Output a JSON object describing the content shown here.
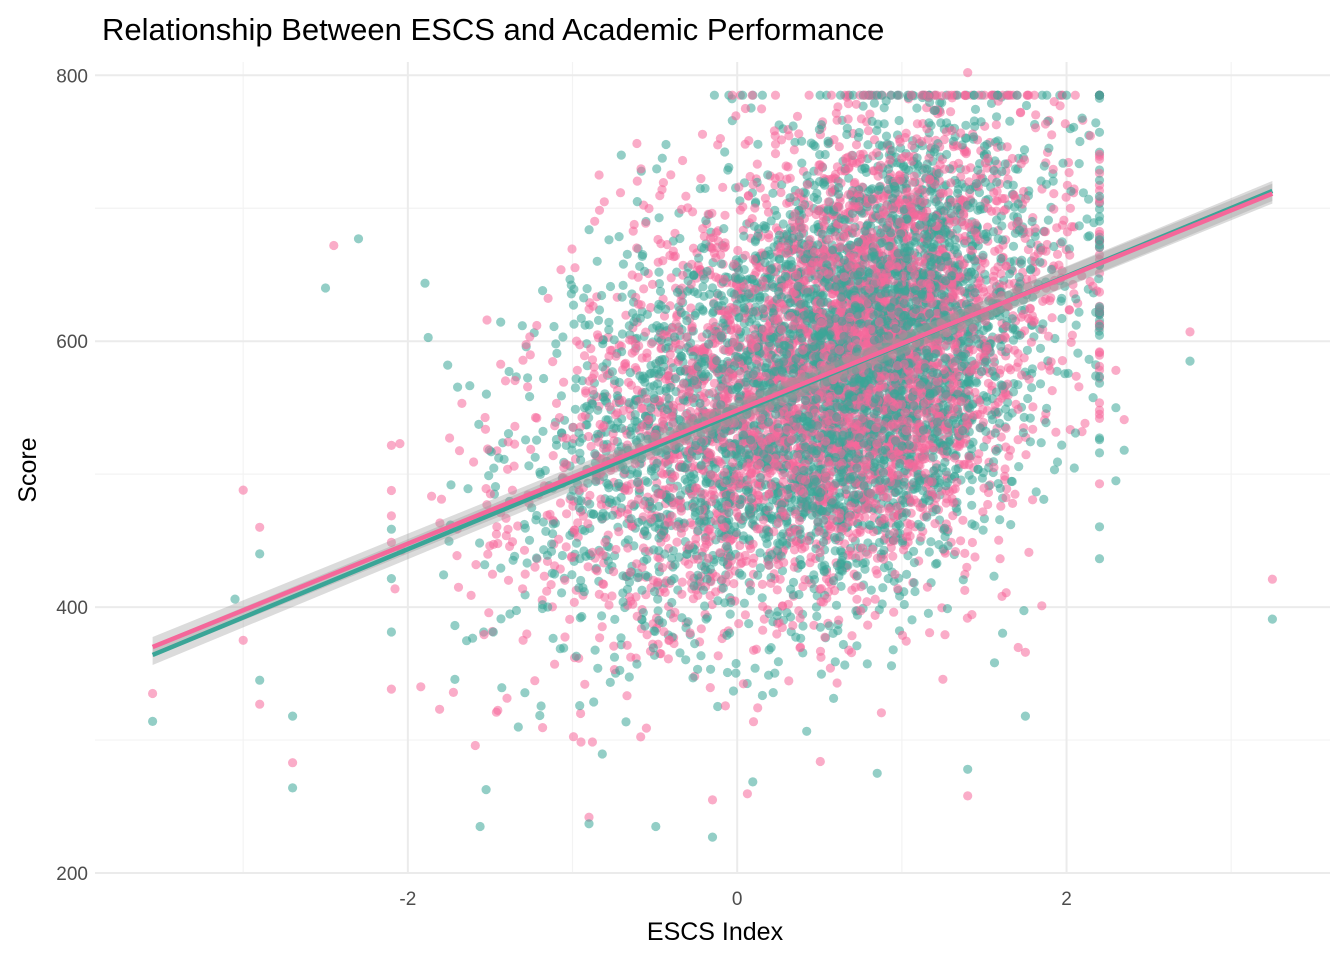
{
  "chart_data": {
    "type": "scatter",
    "title": "Relationship Between ESCS and Academic Performance",
    "xlabel": "ESCS Index",
    "ylabel": "Score",
    "xlim": [
      -3.9,
      3.6
    ],
    "ylim": [
      200,
      810
    ],
    "x_ticks": [
      {
        "value": -2,
        "label": "-2"
      },
      {
        "value": 0,
        "label": "0"
      },
      {
        "value": 2,
        "label": "2"
      }
    ],
    "y_ticks": [
      {
        "value": 200,
        "label": "200"
      },
      {
        "value": 400,
        "label": "400"
      },
      {
        "value": 600,
        "label": "600"
      },
      {
        "value": 800,
        "label": "800"
      }
    ],
    "grid": true,
    "legend": "none",
    "series": [
      {
        "color": "#3aa597",
        "point_count": 4500,
        "trend_line": {
          "x": [
            -3.55,
            3.25
          ],
          "y": [
            364,
            713
          ]
        },
        "outlier_points": [
          {
            "x": -3.55,
            "y": 314
          },
          {
            "x": 3.25,
            "y": 391
          },
          {
            "x": 2.75,
            "y": 585
          },
          {
            "x": -3.05,
            "y": 406
          },
          {
            "x": -2.7,
            "y": 264
          },
          {
            "x": -2.7,
            "y": 318
          },
          {
            "x": -2.3,
            "y": 677
          },
          {
            "x": -2.5,
            "y": 640
          },
          {
            "x": -2.9,
            "y": 440
          },
          {
            "x": -2.9,
            "y": 345
          },
          {
            "x": 2.3,
            "y": 495
          },
          {
            "x": 2.35,
            "y": 518
          },
          {
            "x": 2.3,
            "y": 550
          },
          {
            "x": 0.85,
            "y": 275
          },
          {
            "x": -0.15,
            "y": 227
          },
          {
            "x": -0.9,
            "y": 237
          },
          {
            "x": 1.4,
            "y": 278
          },
          {
            "x": 1.75,
            "y": 318
          }
        ]
      },
      {
        "color": "#f5679a",
        "point_count": 4500,
        "trend_line": {
          "x": [
            -3.55,
            3.25
          ],
          "y": [
            370,
            711
          ]
        },
        "outlier_points": [
          {
            "x": -3.55,
            "y": 335
          },
          {
            "x": 3.25,
            "y": 421
          },
          {
            "x": 2.75,
            "y": 607
          },
          {
            "x": -3.0,
            "y": 488
          },
          {
            "x": -2.9,
            "y": 460
          },
          {
            "x": -2.7,
            "y": 283
          },
          {
            "x": -2.45,
            "y": 672
          },
          {
            "x": -3.0,
            "y": 375
          },
          {
            "x": -2.9,
            "y": 327
          },
          {
            "x": 2.35,
            "y": 541
          },
          {
            "x": 2.3,
            "y": 578
          },
          {
            "x": -0.9,
            "y": 242
          },
          {
            "x": 1.4,
            "y": 258
          },
          {
            "x": 1.4,
            "y": 802
          },
          {
            "x": 0.05,
            "y": 775
          },
          {
            "x": 1.85,
            "y": 401
          },
          {
            "x": 1.75,
            "y": 366
          },
          {
            "x": -0.15,
            "y": 255
          }
        ]
      }
    ]
  }
}
